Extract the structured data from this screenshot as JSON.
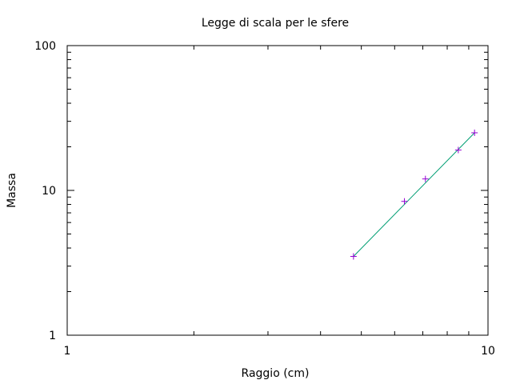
{
  "chart_data": {
    "type": "scatter",
    "title": "Legge di scala per le sfere",
    "xlabel": "Raggio (cm)",
    "ylabel": "Massa",
    "xscale": "log",
    "yscale": "log",
    "xlim": [
      1,
      10
    ],
    "ylim": [
      1,
      100
    ],
    "xticks": [
      "1",
      "10"
    ],
    "yticks": [
      "1",
      "10",
      "100"
    ],
    "grid": false,
    "legend": "none",
    "points": {
      "x": [
        4.79,
        6.33,
        7.1,
        8.5,
        9.29
      ],
      "y": [
        3.5,
        8.4,
        12.0,
        19.0,
        25.0
      ],
      "color": "#9400d3",
      "marker": "+"
    },
    "fit_line": {
      "x": [
        4.79,
        9.29
      ],
      "y": [
        3.5,
        25.0
      ],
      "color": "#009e73"
    }
  }
}
